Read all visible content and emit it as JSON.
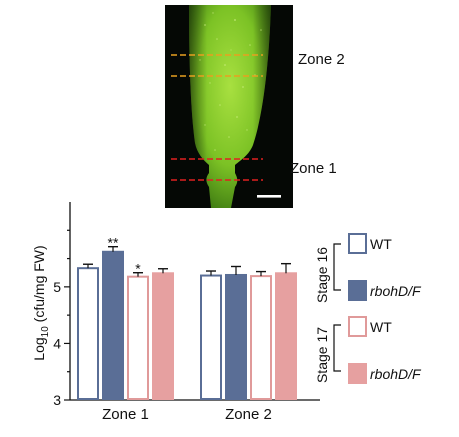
{
  "image": {
    "zone_labels": [
      "Zone 2",
      "Zone 1"
    ],
    "colors": {
      "zone2_lines": "#e8a020",
      "zone1_lines": "#e02020",
      "tissue": "#7cc225",
      "background": "#050805",
      "scale_bar": "#ffffff"
    }
  },
  "chart_data": {
    "type": "bar",
    "categories": [
      "Zone 1",
      "Zone 2"
    ],
    "ylabel_prefix": "Log",
    "ylabel_subscript": "10",
    "ylabel_suffix": " (cfu/mg FW)",
    "ylim": [
      3,
      6.5
    ],
    "yticks": [
      "3",
      "4",
      "5"
    ],
    "grid": false,
    "series": [
      {
        "name": "WT",
        "stage": "Stage 16",
        "fill": "#ffffff",
        "stroke": "#5a6e96",
        "values": [
          5.33,
          5.2
        ],
        "errors": [
          0.07,
          0.08
        ]
      },
      {
        "name": "rbohD/F",
        "stage": "Stage 16",
        "fill": "#5a6e96",
        "stroke": "#5a6e96",
        "values": [
          5.62,
          5.21
        ],
        "errors": [
          0.09,
          0.15
        ]
      },
      {
        "name": "WT",
        "stage": "Stage 17",
        "fill": "#ffffff",
        "stroke": "#e09a9a",
        "values": [
          5.18,
          5.19
        ],
        "errors": [
          0.07,
          0.08
        ]
      },
      {
        "name": "rbohD/F",
        "stage": "Stage 17",
        "fill": "#e6a0a0",
        "stroke": "#e6a0a0",
        "values": [
          5.24,
          5.24
        ],
        "errors": [
          0.08,
          0.17
        ]
      }
    ],
    "annotations": [
      {
        "text": "**",
        "category": 0,
        "series": 1
      },
      {
        "text": "*",
        "category": 0,
        "series": 2
      }
    ],
    "legend": {
      "placement": "right",
      "groups": [
        {
          "label": "Stage 16",
          "items": [
            "WT",
            "rbohD/F"
          ]
        },
        {
          "label": "Stage 17",
          "items": [
            "WT",
            "rbohD/F"
          ]
        }
      ]
    }
  }
}
